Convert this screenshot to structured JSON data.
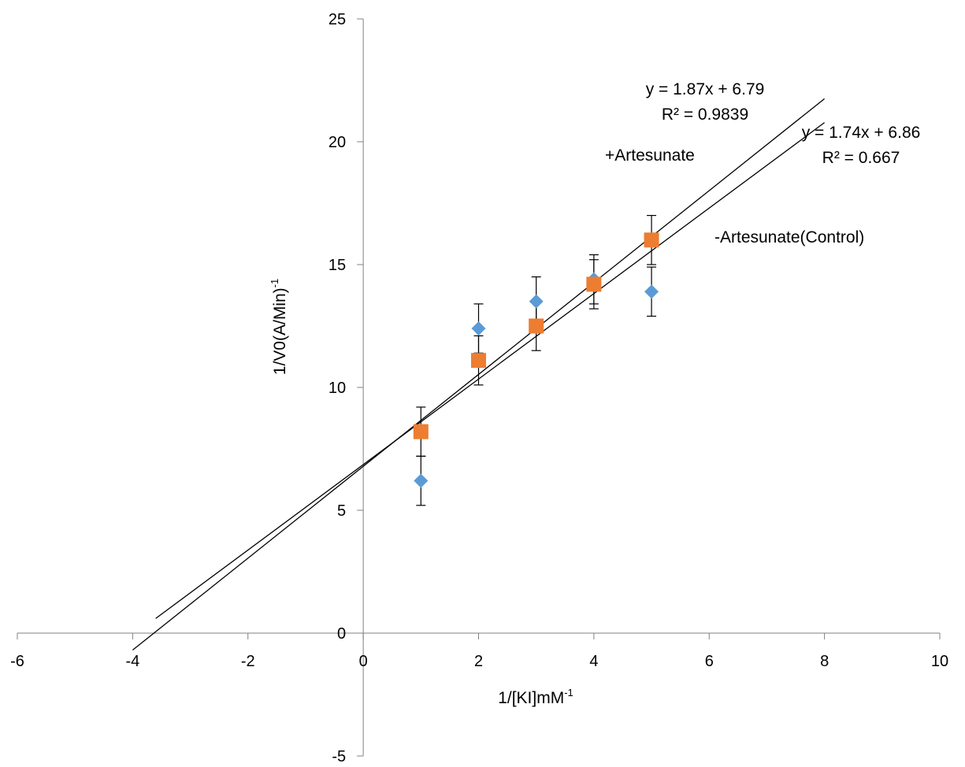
{
  "chart_data": {
    "type": "scatter",
    "title": "",
    "xlabel": "1/[KI]mM",
    "xlabel_sup": "-1",
    "ylabel": "1/V0(A/Min)",
    "ylabel_sup": "-1",
    "xlim": [
      -6,
      10
    ],
    "ylim": [
      -5,
      25
    ],
    "x_ticks": [
      -6,
      -4,
      -2,
      0,
      2,
      4,
      6,
      8,
      10
    ],
    "y_ticks": [
      -5,
      0,
      5,
      10,
      15,
      20,
      25
    ],
    "grid": false,
    "legend": "none",
    "series": [
      {
        "marker": "diamond",
        "color": "#5B9BD5",
        "x": [
          1,
          2,
          3,
          4,
          5
        ],
        "y": [
          6.2,
          12.4,
          13.5,
          14.4,
          13.9
        ],
        "error": [
          1.0,
          1.0,
          1.0,
          1.0,
          1.0
        ]
      },
      {
        "marker": "square",
        "color": "#ED7D31",
        "x": [
          1,
          2,
          3,
          4,
          5
        ],
        "y": [
          8.2,
          11.1,
          12.5,
          14.2,
          16.0
        ],
        "error": [
          1.0,
          1.0,
          1.0,
          1.0,
          1.0
        ]
      }
    ],
    "trendlines": [
      {
        "slope": 1.87,
        "intercept": 6.79,
        "x_range": [
          -4,
          8
        ]
      },
      {
        "slope": 1.74,
        "intercept": 6.86,
        "x_range": [
          -3.6,
          8
        ]
      }
    ],
    "annotations": {
      "eq1": "y = 1.87x + 6.79",
      "r2_1": "R² = 0.9839",
      "eq2": "y = 1.74x + 6.86",
      "r2_2": "R² = 0.667",
      "plus_label": "+Artesunate",
      "minus_label": "-Artesunate(Control)"
    }
  }
}
